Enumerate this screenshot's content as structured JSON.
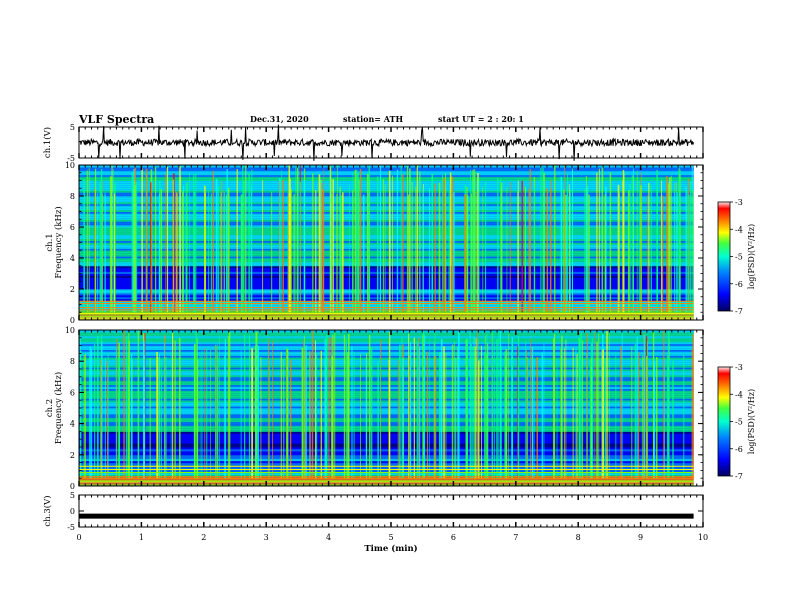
{
  "header": {
    "title": "VLF Spectra",
    "date": "Dec.31, 2020",
    "station": "station= ATH",
    "start_ut": "start  UT =   2 : 20: 1"
  },
  "chart_data": [
    {
      "type": "line",
      "panel": "ch1-waveform",
      "ylabel": "ch.1(V)",
      "ylim": [
        -5,
        5
      ],
      "yticks": [
        "5",
        "-5"
      ],
      "xlim": [
        0,
        10
      ],
      "baseline": 0,
      "line_color": "#000000"
    },
    {
      "type": "heatmap",
      "panel": "ch1-spectrogram",
      "ylabel_line1": "ch.1",
      "ylabel_line2": "Frequency (kHz)",
      "ylim": [
        0,
        10
      ],
      "yticks": [
        "0",
        "2",
        "4",
        "6",
        "8",
        "10"
      ],
      "xlim": [
        0,
        10
      ],
      "data_extent_min": 9.85,
      "colorbar": {
        "label": "log(PSD)(V²/Hz)",
        "range": [
          -7,
          -3
        ],
        "ticks": [
          "-3",
          "-4",
          "-5",
          "-6",
          "-7"
        ]
      }
    },
    {
      "type": "heatmap",
      "panel": "ch2-spectrogram",
      "ylabel_line1": "ch.2",
      "ylabel_line2": "Frequency (kHz)",
      "ylim": [
        0,
        10
      ],
      "yticks": [
        "0",
        "2",
        "4",
        "6",
        "8",
        "10"
      ],
      "xlim": [
        0,
        10
      ],
      "data_extent_min": 9.85,
      "colorbar": {
        "label": "log(PSD)(V²/Hz)",
        "range": [
          -7,
          -3
        ],
        "ticks": [
          "-3",
          "-4",
          "-5",
          "-6",
          "-7"
        ]
      }
    },
    {
      "type": "line",
      "panel": "ch3-waveform",
      "ylabel": "ch.3(V)",
      "ylim": [
        -5,
        5
      ],
      "yticks": [
        "5",
        "0",
        "-5"
      ],
      "xlim": [
        0,
        10
      ],
      "baseline": -1.6,
      "line_color": "#000000"
    }
  ],
  "xaxis": {
    "label": "Time (min)",
    "ticks": [
      "0",
      "1",
      "2",
      "3",
      "4",
      "5",
      "6",
      "7",
      "8",
      "9",
      "10"
    ]
  },
  "colormap": [
    "#00007f",
    "#0000ff",
    "#0080ff",
    "#00ffff",
    "#00ff80",
    "#80ff00",
    "#ffff00",
    "#ff8000",
    "#ff0000",
    "#ffffff"
  ]
}
